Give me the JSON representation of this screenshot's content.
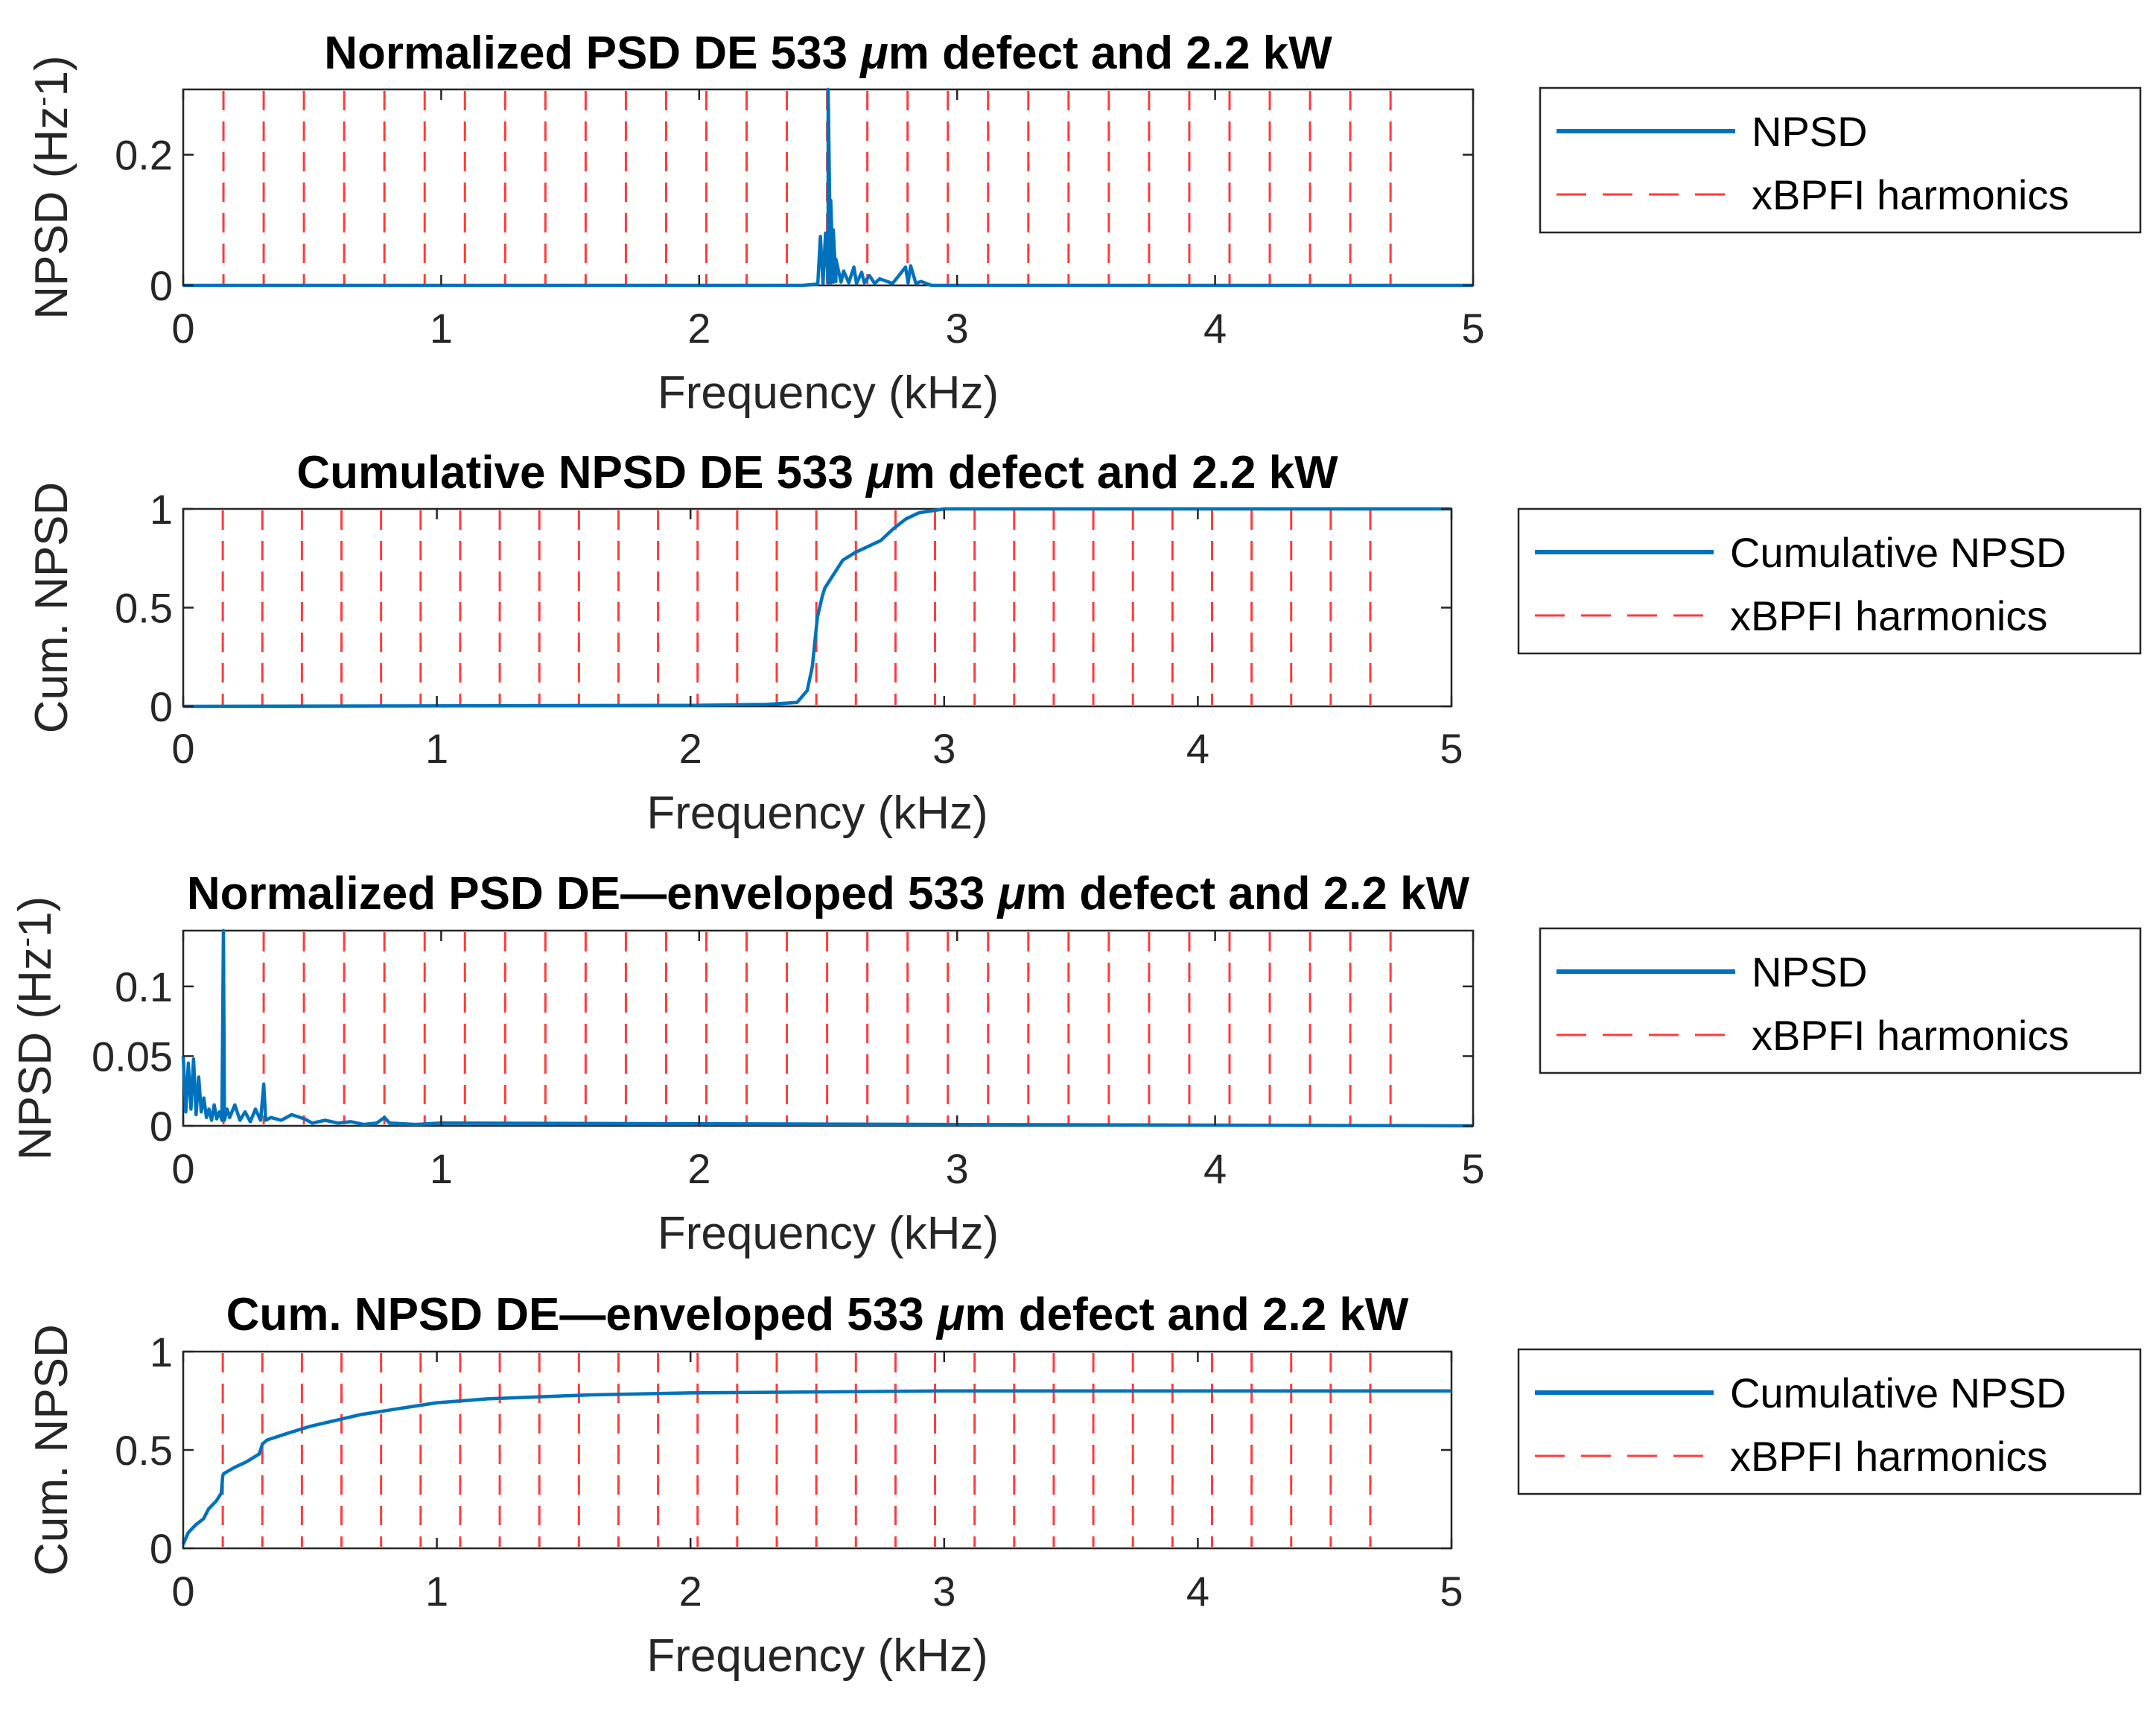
{
  "colors": {
    "npsd_line": "#0072bd",
    "harmonic_line": "#ff3b3b",
    "axes": "#262626",
    "background": "#ffffff"
  },
  "chart_data": [
    {
      "type": "line",
      "title_parts": [
        "Normalized PSD DE 533 ",
        "μ",
        "m defect and 2.2 kW"
      ],
      "xlabel": "Frequency (kHz)",
      "ylabel_parts": [
        "NPSD (Hz",
        "-",
        "1)"
      ],
      "xlim": [
        0,
        5
      ],
      "ylim": [
        0,
        0.3
      ],
      "xticks": [
        0,
        1,
        2,
        3,
        4,
        5
      ],
      "xtick_labels": [
        "0",
        "1",
        "2",
        "3",
        "4",
        "5"
      ],
      "yticks": [
        0,
        0.2
      ],
      "ytick_labels": [
        "0",
        "0.2"
      ],
      "legend": [
        "NPSD",
        "xBPFI harmonics"
      ],
      "harmonics_kHz": [
        0.156,
        0.312,
        0.468,
        0.624,
        0.78,
        0.936,
        1.092,
        1.248,
        1.404,
        1.56,
        1.716,
        1.872,
        2.028,
        2.184,
        2.34,
        2.496,
        2.652,
        2.808,
        2.964,
        3.12,
        3.276,
        3.432,
        3.588,
        3.744,
        3.9,
        4.056,
        4.212,
        4.368,
        4.524,
        4.68
      ],
      "series": [
        {
          "name": "NPSD",
          "x": [
            0,
            2.4,
            2.46,
            2.47,
            2.48,
            2.49,
            2.5,
            2.5,
            2.51,
            2.51,
            2.52,
            2.52,
            2.53,
            2.53,
            2.55,
            2.56,
            2.58,
            2.6,
            2.61,
            2.63,
            2.64,
            2.66,
            2.68,
            2.7,
            2.75,
            2.8,
            2.81,
            2.82,
            2.84,
            2.86,
            2.9,
            5
          ],
          "y": [
            0,
            0,
            0.002,
            0.075,
            0.003,
            0.08,
            0.004,
            0.3,
            0.004,
            0.13,
            0.005,
            0.085,
            0.006,
            0.04,
            0.005,
            0.022,
            0.004,
            0.028,
            0.003,
            0.02,
            0.004,
            0.015,
            0.003,
            0.01,
            0.003,
            0.028,
            0.004,
            0.03,
            0.003,
            0.006,
            0,
            0
          ]
        }
      ]
    },
    {
      "type": "line",
      "title_parts": [
        "Cumulative NPSD DE 533 ",
        "μ",
        "m defect and 2.2 kW"
      ],
      "xlabel": "Frequency (kHz)",
      "ylabel_parts": [
        "Cum. NPSD",
        "",
        ""
      ],
      "xlim": [
        0,
        5
      ],
      "ylim": [
        0,
        1
      ],
      "xticks": [
        0,
        1,
        2,
        3,
        4,
        5
      ],
      "xtick_labels": [
        "0",
        "1",
        "2",
        "3",
        "4",
        "5"
      ],
      "yticks": [
        0,
        0.5,
        1
      ],
      "ytick_labels": [
        "0",
        "0.5",
        "1"
      ],
      "legend": [
        "Cumulative NPSD",
        "xBPFI harmonics"
      ],
      "harmonics_kHz": [
        0.156,
        0.312,
        0.468,
        0.624,
        0.78,
        0.936,
        1.092,
        1.248,
        1.404,
        1.56,
        1.716,
        1.872,
        2.028,
        2.184,
        2.34,
        2.496,
        2.652,
        2.808,
        2.964,
        3.12,
        3.276,
        3.432,
        3.588,
        3.744,
        3.9,
        4.056,
        4.212,
        4.368,
        4.524,
        4.68
      ],
      "series": [
        {
          "name": "Cumulative NPSD",
          "x": [
            0,
            2.0,
            2.3,
            2.42,
            2.46,
            2.48,
            2.5,
            2.52,
            2.53,
            2.56,
            2.6,
            2.65,
            2.7,
            2.75,
            2.8,
            2.85,
            2.9,
            2.95,
            3.0,
            5
          ],
          "y": [
            0,
            0.005,
            0.01,
            0.02,
            0.08,
            0.2,
            0.45,
            0.56,
            0.6,
            0.66,
            0.74,
            0.78,
            0.81,
            0.84,
            0.9,
            0.95,
            0.98,
            0.99,
            1.0,
            1.0
          ]
        }
      ]
    },
    {
      "type": "line",
      "title_parts": [
        "Normalized PSD DE—enveloped 533 ",
        "μ",
        "m defect and 2.2 kW"
      ],
      "xlabel": "Frequency (kHz)",
      "ylabel_parts": [
        "NPSD (Hz",
        "-",
        "1)"
      ],
      "xlim": [
        0,
        5
      ],
      "ylim": [
        0,
        0.14
      ],
      "xticks": [
        0,
        1,
        2,
        3,
        4,
        5
      ],
      "xtick_labels": [
        "0",
        "1",
        "2",
        "3",
        "4",
        "5"
      ],
      "yticks": [
        0,
        0.05,
        0.1
      ],
      "ytick_labels": [
        "0",
        "0.05",
        "0.1"
      ],
      "legend": [
        "NPSD",
        "xBPFI harmonics"
      ],
      "harmonics_kHz": [
        0.156,
        0.312,
        0.468,
        0.624,
        0.78,
        0.936,
        1.092,
        1.248,
        1.404,
        1.56,
        1.716,
        1.872,
        2.028,
        2.184,
        2.34,
        2.496,
        2.652,
        2.808,
        2.964,
        3.12,
        3.276,
        3.432,
        3.588,
        3.744,
        3.9,
        4.056,
        4.212,
        4.368,
        4.524,
        4.68
      ],
      "series": [
        {
          "name": "NPSD",
          "x": [
            0,
            0.01,
            0.02,
            0.03,
            0.04,
            0.05,
            0.06,
            0.07,
            0.08,
            0.09,
            0.1,
            0.11,
            0.12,
            0.13,
            0.14,
            0.15,
            0.156,
            0.16,
            0.17,
            0.18,
            0.2,
            0.22,
            0.24,
            0.26,
            0.28,
            0.3,
            0.31,
            0.312,
            0.32,
            0.34,
            0.38,
            0.42,
            0.47,
            0.5,
            0.55,
            0.6,
            0.65,
            0.7,
            0.75,
            0.78,
            0.8,
            0.9,
            1.0,
            5
          ],
          "y": [
            0.05,
            0.01,
            0.045,
            0.012,
            0.048,
            0.008,
            0.035,
            0.01,
            0.02,
            0.006,
            0.012,
            0.004,
            0.015,
            0.005,
            0.01,
            0.004,
            0.14,
            0.004,
            0.012,
            0.006,
            0.015,
            0.004,
            0.01,
            0.003,
            0.012,
            0.004,
            0.025,
            0.03,
            0.004,
            0.006,
            0.004,
            0.008,
            0.005,
            0.002,
            0.004,
            0.002,
            0.003,
            0.001,
            0.002,
            0.006,
            0.002,
            0.001,
            0.002,
            0
          ]
        }
      ]
    },
    {
      "type": "line",
      "title_parts": [
        "Cum. NPSD DE—enveloped 533 ",
        "μ",
        "m defect and 2.2 kW"
      ],
      "xlabel": "Frequency (kHz)",
      "ylabel_parts": [
        "Cum. NPSD",
        "",
        ""
      ],
      "xlim": [
        0,
        5
      ],
      "ylim": [
        0,
        1
      ],
      "xticks": [
        0,
        1,
        2,
        3,
        4,
        5
      ],
      "xtick_labels": [
        "0",
        "1",
        "2",
        "3",
        "4",
        "5"
      ],
      "yticks": [
        0,
        0.5,
        1
      ],
      "ytick_labels": [
        "0",
        "0.5",
        "1"
      ],
      "legend": [
        "Cumulative NPSD",
        "xBPFI harmonics"
      ],
      "harmonics_kHz": [
        0.156,
        0.312,
        0.468,
        0.624,
        0.78,
        0.936,
        1.092,
        1.248,
        1.404,
        1.56,
        1.716,
        1.872,
        2.028,
        2.184,
        2.34,
        2.496,
        2.652,
        2.808,
        2.964,
        3.12,
        3.276,
        3.432,
        3.588,
        3.744,
        3.9,
        4.056,
        4.212,
        4.368,
        4.524,
        4.68
      ],
      "series": [
        {
          "name": "Cumulative NPSD",
          "x": [
            0,
            0.02,
            0.05,
            0.08,
            0.1,
            0.13,
            0.15,
            0.156,
            0.16,
            0.2,
            0.25,
            0.3,
            0.312,
            0.33,
            0.4,
            0.5,
            0.6,
            0.7,
            0.8,
            0.9,
            1.0,
            1.2,
            1.4,
            1.6,
            1.8,
            2.0,
            2.5,
            3.0,
            4.0,
            5.0
          ],
          "y": [
            0.02,
            0.08,
            0.12,
            0.15,
            0.2,
            0.24,
            0.28,
            0.37,
            0.38,
            0.41,
            0.44,
            0.48,
            0.53,
            0.55,
            0.58,
            0.62,
            0.65,
            0.68,
            0.7,
            0.72,
            0.74,
            0.76,
            0.77,
            0.78,
            0.785,
            0.79,
            0.795,
            0.8,
            0.8,
            0.8
          ]
        }
      ]
    }
  ]
}
